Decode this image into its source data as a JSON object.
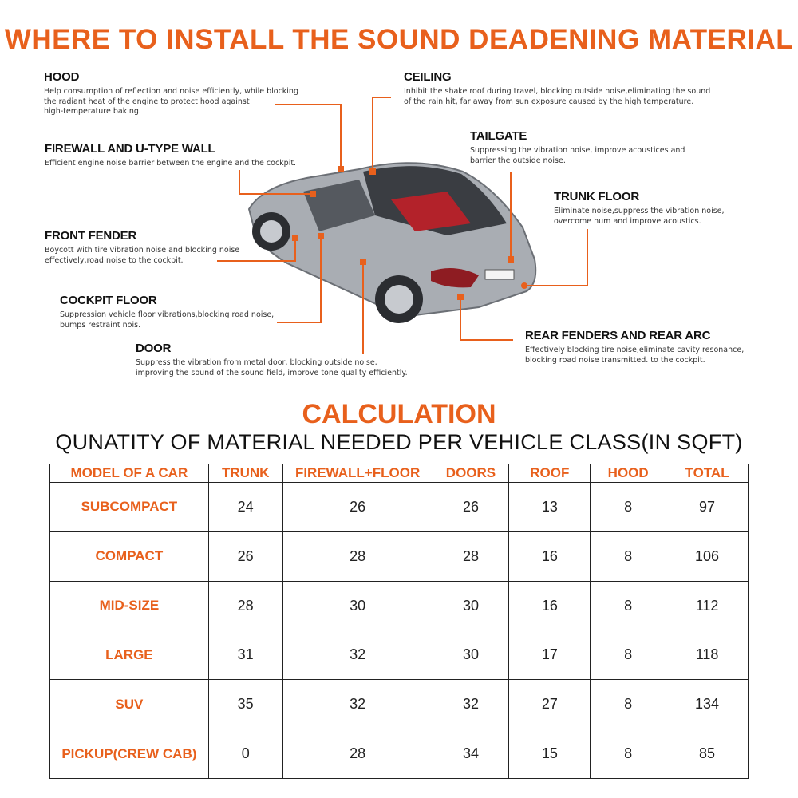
{
  "title": "WHERE TO INSTALL THE SOUND DEADENING MATERIAL",
  "accent_color": "#e8601c",
  "callouts": {
    "hood": {
      "heading": "HOOD",
      "text": "Help consumption of reflection and noise efficiently, while blocking\nthe radiant heat of the engine to protect hood against\nhigh-temperature baking."
    },
    "ceiling": {
      "heading": "CEILING",
      "text": "Inhibit the shake roof during travel, blocking outside noise,eliminating the sound\nof the rain hit, far away from sun exposure caused by the high temperature."
    },
    "tailgate": {
      "heading": "TAILGATE",
      "text": "Suppressing the vibration noise, improve acoustices and\nbarrier the outside noise."
    },
    "firewall": {
      "heading": "FIREWALL AND U-TYPE WALL",
      "text": "Efficient engine noise barrier between the engine and the cockpit."
    },
    "trunk_floor": {
      "heading": "TRUNK FLOOR",
      "text": "Eliminate noise,suppress the vibration noise,\novercome hum and improve acoustics."
    },
    "front_fender": {
      "heading": "FRONT FENDER",
      "text": "Boycott with tire vibration noise and blocking noise\neffectively,road noise to the cockpit."
    },
    "cockpit_floor": {
      "heading": "COCKPIT FLOOR",
      "text": "Suppression vehicle floor vibrations,blocking road noise,\nbumps restraint nois."
    },
    "door": {
      "heading": "DOOR",
      "text": "Suppress the vibration from metal door, blocking outside noise,\nimproving the sound of the sound field, improve tone quality efficiently."
    },
    "rear_fenders": {
      "heading": "REAR FENDERS AND REAR ARC",
      "text": "Effectively blocking tire noise,eliminate cavity resonance,\nblocking road noise transmitted. to the cockpit."
    }
  },
  "calculation": {
    "heading": "CALCULATION",
    "subheading": "QUNATITY OF MATERIAL NEEDED PER VEHICLE CLASS(IN SQFT)",
    "columns": [
      "MODEL OF A CAR",
      "TRUNK",
      "FIREWALL+FLOOR",
      "DOORS",
      "ROOF",
      "HOOD",
      "TOTAL"
    ],
    "rows": [
      [
        "SUBCOMPACT",
        "24",
        "26",
        "26",
        "13",
        "8",
        "97"
      ],
      [
        "COMPACT",
        "26",
        "28",
        "28",
        "16",
        "8",
        "106"
      ],
      [
        "MID-SIZE",
        "28",
        "30",
        "30",
        "16",
        "8",
        "112"
      ],
      [
        "LARGE",
        "31",
        "32",
        "30",
        "17",
        "8",
        "118"
      ],
      [
        "SUV",
        "35",
        "32",
        "32",
        "27",
        "8",
        "134"
      ],
      [
        "PICKUP(CREW CAB)",
        "0",
        "28",
        "34",
        "15",
        "8",
        "85"
      ]
    ]
  }
}
